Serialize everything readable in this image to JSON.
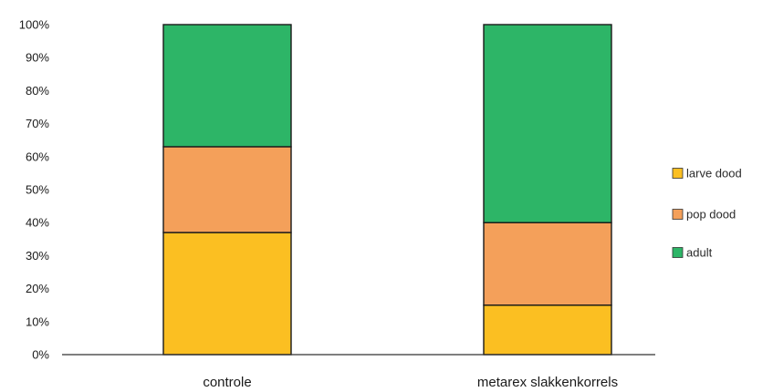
{
  "chart_data": {
    "type": "bar",
    "stacked": true,
    "percent": true,
    "categories": [
      "controle",
      "metarex slakkenkorrels"
    ],
    "series": [
      {
        "name": "larve dood",
        "values": [
          37,
          15
        ],
        "color": "#FBBF22"
      },
      {
        "name": "pop dood",
        "values": [
          26,
          25
        ],
        "color": "#F4A05A"
      },
      {
        "name": "adult",
        "values": [
          37,
          60
        ],
        "color": "#2DB567"
      }
    ],
    "yticks": [
      "0%",
      "10%",
      "20%",
      "30%",
      "40%",
      "50%",
      "60%",
      "70%",
      "80%",
      "90%",
      "100%"
    ],
    "ylim": [
      0,
      100
    ],
    "grid": false,
    "legend_position": "right",
    "title": "",
    "xlabel": "",
    "ylabel": ""
  }
}
